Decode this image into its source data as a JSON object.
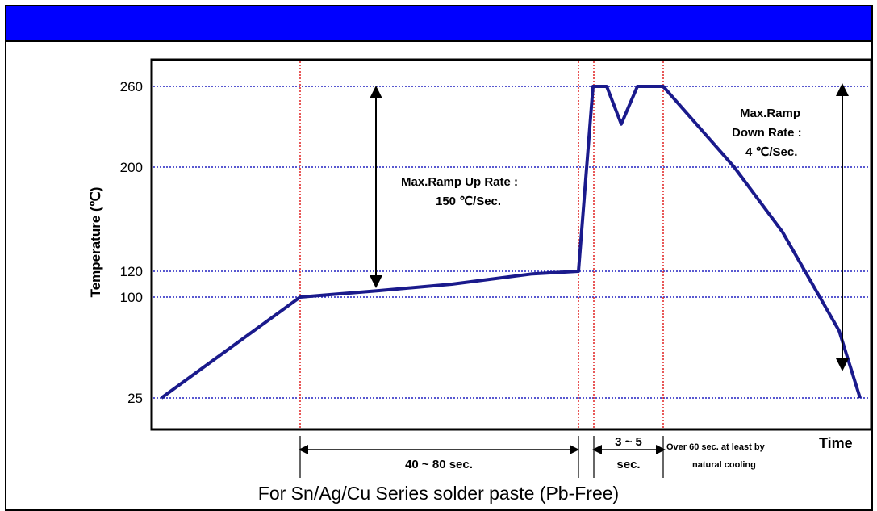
{
  "caption": "For Sn/Ag/Cu Series solder paste (Pb-Free)",
  "colors": {
    "title_bar": "#0000ff",
    "profile_line": "#1a1a8c",
    "grid_blue": "#2020c0",
    "phase_red": "#e02020"
  },
  "chart_data": {
    "type": "line",
    "ylabel": "Temperature (℃)",
    "xlabel": "Time",
    "y_ticks": [
      "260",
      "200",
      "120",
      "100",
      "25"
    ],
    "y_tick_values": [
      260,
      200,
      120,
      100,
      25
    ],
    "grid": true,
    "series": [
      {
        "points": [
          [
            0,
            25
          ],
          [
            1,
            100
          ],
          [
            2,
            105
          ],
          [
            3,
            110
          ],
          [
            4,
            118
          ],
          [
            5,
            120
          ],
          [
            6,
            260
          ],
          [
            7,
            260
          ],
          [
            8,
            232
          ],
          [
            9,
            260
          ],
          [
            10,
            260
          ],
          [
            11,
            200
          ],
          [
            12,
            150
          ],
          [
            13,
            75
          ],
          [
            14,
            25
          ]
        ]
      }
    ],
    "annotations": {
      "ramp_up_line1": "Max.Ramp Up Rate :",
      "ramp_up_line2": "150 ℃/Sec.",
      "ramp_down_line1": "Max.Ramp",
      "ramp_down_line2": "Down Rate :",
      "ramp_down_line3": "4 ℃/Sec."
    },
    "intervals": {
      "soak": "40 ~ 80 sec.",
      "peak_line1": "3 ~ 5",
      "peak_line2": "sec.",
      "cooling_line1": "Over 60 sec. at least by",
      "cooling_line2": "natural cooling"
    }
  }
}
